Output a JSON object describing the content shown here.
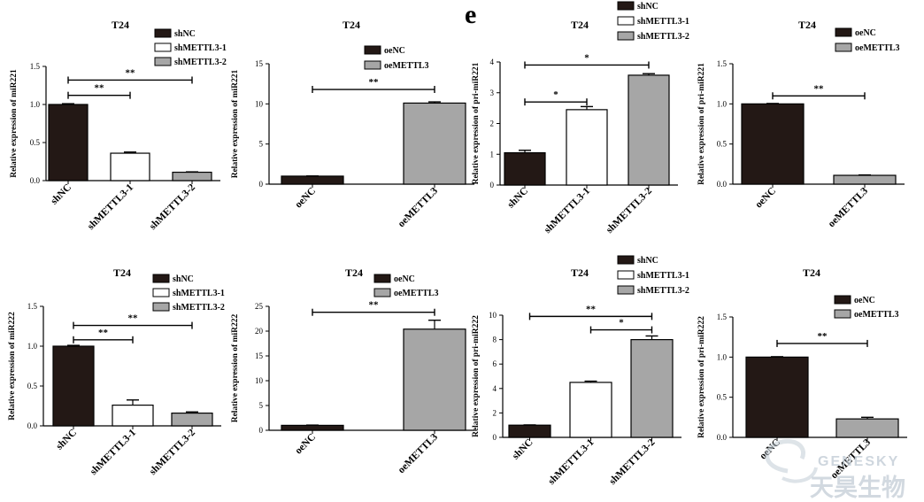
{
  "panel_label": "e",
  "watermark": {
    "brand": "GENESKY",
    "brand_cn": "天昊生物",
    "color": "#c3cdd6"
  },
  "colors": {
    "black": "#231815",
    "white": "#ffffff",
    "gray": "#a6a6a6"
  },
  "chart_data": [
    {
      "type": "bar",
      "title": "T24",
      "ylabel": "Relative expression of miR221",
      "categories": [
        "shNC",
        "shMETTL3-1",
        "shMETTL3-2"
      ],
      "values": [
        1.0,
        0.36,
        0.11
      ],
      "errors": [
        0.01,
        0.015,
        0.005
      ],
      "fills": [
        "black",
        "white",
        "gray"
      ],
      "ylim": [
        0,
        1.5
      ],
      "yticks": [
        0.0,
        0.5,
        1.0,
        1.5
      ],
      "tick_labels": [
        "0.0",
        "0.5",
        "1.0",
        "1.5"
      ],
      "legend": [
        "shNC",
        "shMETTL3-1",
        "shMETTL3-2"
      ],
      "legend_fills": [
        "black",
        "white",
        "gray"
      ],
      "significance": [
        {
          "from": 0,
          "to": 1,
          "y": 1.12,
          "label": "**"
        },
        {
          "from": 0,
          "to": 2,
          "y": 1.32,
          "label": "**"
        }
      ]
    },
    {
      "type": "bar",
      "title": "T24",
      "ylabel": "Relative expression of miR221",
      "categories": [
        "oeNC",
        "oeMETTL3"
      ],
      "values": [
        1.0,
        10.1
      ],
      "errors": [
        0.02,
        0.15
      ],
      "fills": [
        "black",
        "gray"
      ],
      "ylim": [
        0,
        15
      ],
      "yticks": [
        0,
        5,
        10,
        15
      ],
      "tick_labels": [
        "0",
        "5",
        "10",
        "15"
      ],
      "legend": [
        "oeNC",
        "oeMETTL3"
      ],
      "legend_fills": [
        "black",
        "gray"
      ],
      "significance": [
        {
          "from": 0,
          "to": 1,
          "y": 11.8,
          "label": "**"
        }
      ]
    },
    {
      "type": "bar",
      "title": "T24",
      "ylabel": "Relative expression of pri-miR221",
      "categories": [
        "shNC",
        "shMETTL3-1",
        "shMETTL3-2"
      ],
      "values": [
        1.05,
        2.45,
        3.57
      ],
      "errors": [
        0.08,
        0.1,
        0.05
      ],
      "fills": [
        "black",
        "white",
        "gray"
      ],
      "ylim": [
        0,
        4
      ],
      "yticks": [
        0,
        1,
        2,
        3,
        4
      ],
      "tick_labels": [
        "0",
        "1",
        "2",
        "3",
        "4"
      ],
      "legend": [
        "shNC",
        "shMETTL3-1",
        "shMETTL3-2"
      ],
      "legend_fills": [
        "black",
        "white",
        "gray"
      ],
      "significance": [
        {
          "from": 0,
          "to": 1,
          "y": 2.7,
          "label": "*"
        },
        {
          "from": 0,
          "to": 2,
          "y": 3.9,
          "label": "*"
        }
      ]
    },
    {
      "type": "bar",
      "title": "T24",
      "ylabel": "Relative expression of pri-miR221",
      "categories": [
        "oeNC",
        "oeMETTL3"
      ],
      "values": [
        1.0,
        0.11
      ],
      "errors": [
        0.005,
        0.005
      ],
      "fills": [
        "black",
        "gray"
      ],
      "ylim": [
        0,
        1.5
      ],
      "yticks": [
        0.0,
        0.5,
        1.0,
        1.5
      ],
      "tick_labels": [
        "0.0",
        "0.5",
        "1.0",
        "1.5"
      ],
      "legend": [
        "oeNC",
        "oeMETTL3"
      ],
      "legend_fills": [
        "black",
        "gray"
      ],
      "significance": [
        {
          "from": 0,
          "to": 1,
          "y": 1.1,
          "label": "**"
        }
      ]
    },
    {
      "type": "bar",
      "title": "T24",
      "ylabel": "Relative expression of miR222",
      "categories": [
        "shNC",
        "shMETTL3-1",
        "shMETTL3-2"
      ],
      "values": [
        1.0,
        0.26,
        0.16
      ],
      "errors": [
        0.01,
        0.065,
        0.015
      ],
      "fills": [
        "black",
        "white",
        "gray"
      ],
      "ylim": [
        0,
        1.5
      ],
      "yticks": [
        0.0,
        0.5,
        1.0,
        1.5
      ],
      "tick_labels": [
        "0.0",
        "0.5",
        "1.0",
        "1.5"
      ],
      "legend": [
        "shNC",
        "shMETTL3-1",
        "shMETTL3-2"
      ],
      "legend_fills": [
        "black",
        "white",
        "gray"
      ],
      "significance": [
        {
          "from": 0,
          "to": 1,
          "y": 1.08,
          "label": "**"
        },
        {
          "from": 0,
          "to": 2,
          "y": 1.26,
          "label": "**"
        }
      ]
    },
    {
      "type": "bar",
      "title": "T24",
      "ylabel": "Relative expression of miR222",
      "categories": [
        "oeNC",
        "oeMETTL3"
      ],
      "values": [
        1.0,
        20.4
      ],
      "errors": [
        0.05,
        1.8
      ],
      "fills": [
        "black",
        "gray"
      ],
      "ylim": [
        0,
        25
      ],
      "yticks": [
        0,
        5,
        10,
        15,
        20,
        25
      ],
      "tick_labels": [
        "0",
        "5",
        "10",
        "15",
        "20",
        "25"
      ],
      "legend": [
        "oeNC",
        "oeMETTL3"
      ],
      "legend_fills": [
        "black",
        "gray"
      ],
      "significance": [
        {
          "from": 0,
          "to": 1,
          "y": 23.8,
          "label": "**"
        }
      ]
    },
    {
      "type": "bar",
      "title": "T24",
      "ylabel": "Relative expression of pri-miR222",
      "categories": [
        "shNC",
        "shMETTL3-1",
        "shMETTL3-2"
      ],
      "values": [
        1.0,
        4.5,
        8.0
      ],
      "errors": [
        0.02,
        0.1,
        0.3
      ],
      "fills": [
        "black",
        "white",
        "gray"
      ],
      "ylim": [
        0,
        10
      ],
      "yticks": [
        0,
        2,
        4,
        6,
        8,
        10
      ],
      "tick_labels": [
        "0",
        "2",
        "4",
        "6",
        "8",
        "10"
      ],
      "legend": [
        "shNC",
        "shMETTL3-1",
        "shMETTL3-2"
      ],
      "legend_fills": [
        "black",
        "white",
        "gray"
      ],
      "significance": [
        {
          "from": 0,
          "to": 2,
          "y": 9.9,
          "label": "**"
        },
        {
          "from": 1,
          "to": 2,
          "y": 8.8,
          "label": "*"
        }
      ]
    },
    {
      "type": "bar",
      "title": "T24",
      "ylabel": "Relative expression of pri-miR222",
      "categories": [
        "oeNC",
        "oeMETTL3"
      ],
      "values": [
        1.0,
        0.23
      ],
      "errors": [
        0.005,
        0.02
      ],
      "fills": [
        "black",
        "gray"
      ],
      "ylim": [
        0,
        1.5
      ],
      "yticks": [
        0.0,
        0.5,
        1.0,
        1.5
      ],
      "tick_labels": [
        "0.0",
        "0.5",
        "1.0",
        "1.5"
      ],
      "legend": [
        "oeNC",
        "oeMETTL3"
      ],
      "legend_fills": [
        "black",
        "gray"
      ],
      "significance": [
        {
          "from": 0,
          "to": 1,
          "y": 1.17,
          "label": "**"
        }
      ]
    }
  ]
}
